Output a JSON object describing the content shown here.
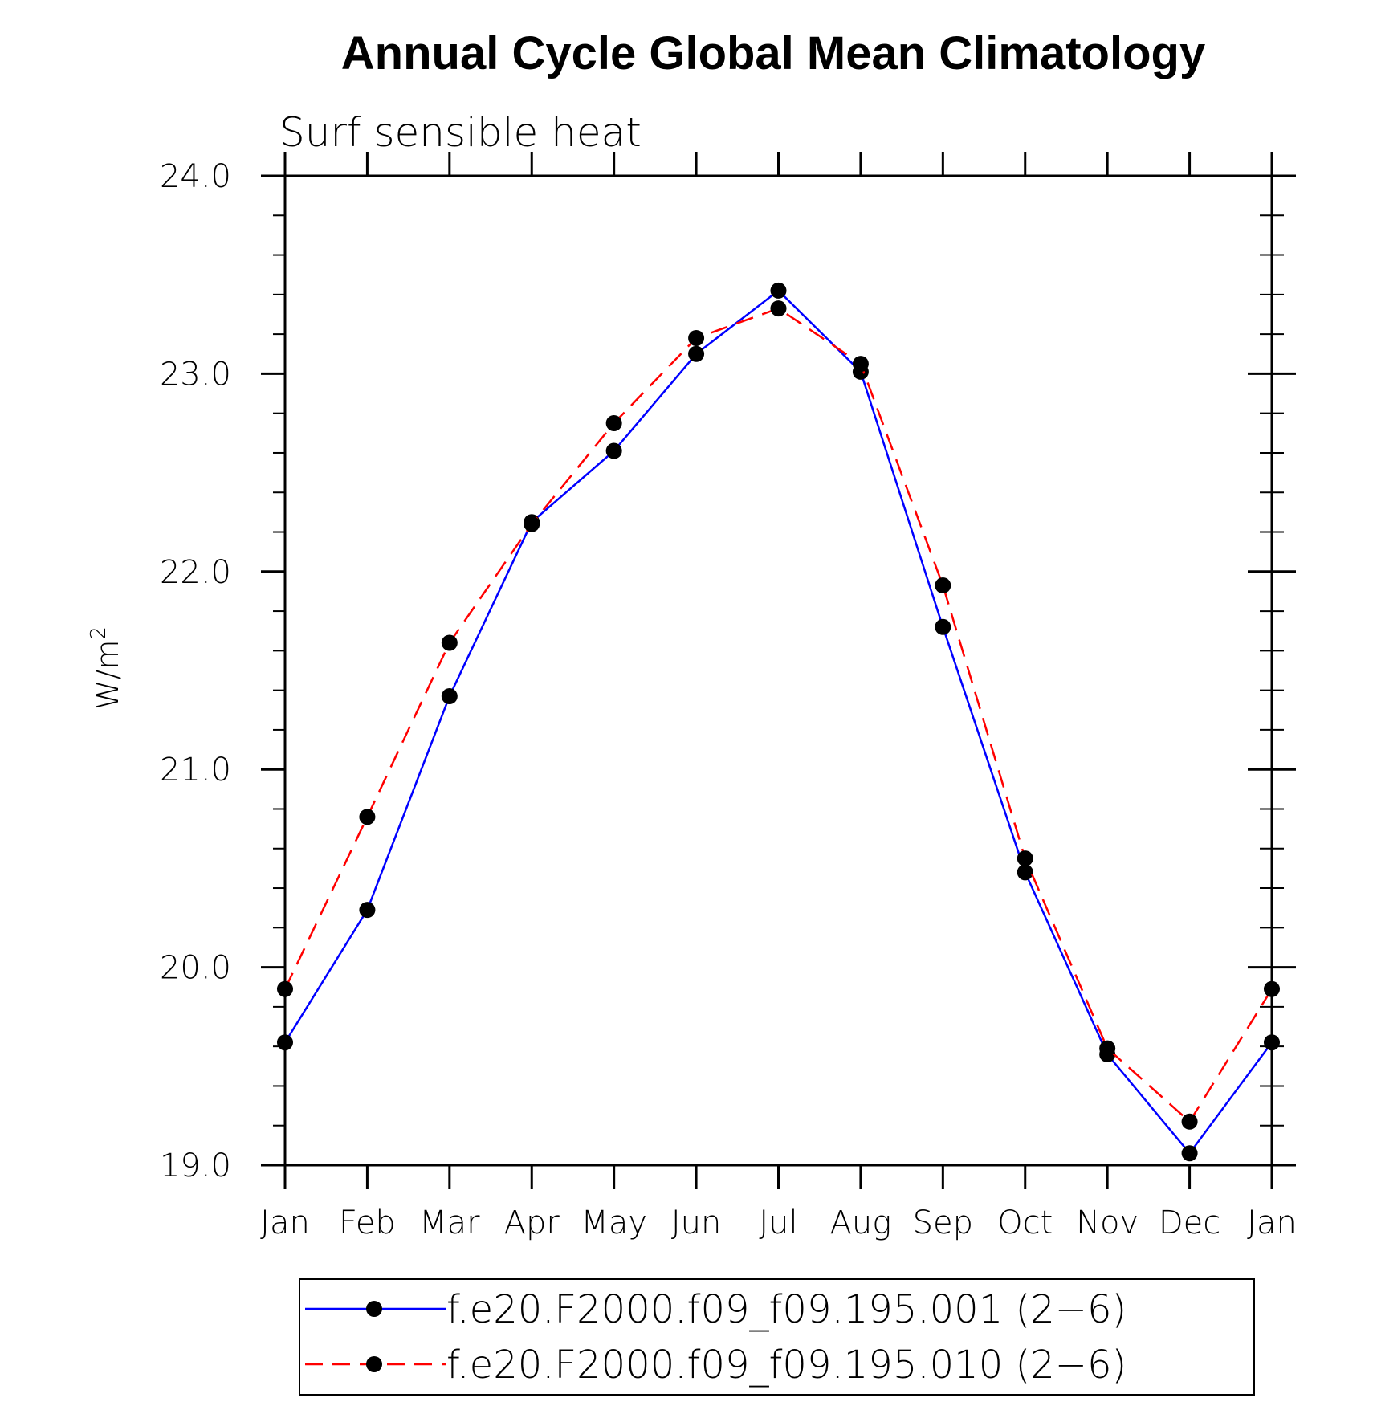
{
  "chart_data": {
    "type": "line",
    "title": "Annual Cycle Global Mean Climatology",
    "subtitle": "Surf sensible heat",
    "ylabel": "W/m",
    "ylabel_superscript": "2",
    "ylim": [
      19.0,
      24.0
    ],
    "yticks": [
      "24.0",
      "23.0",
      "22.0",
      "21.0",
      "20.0",
      "19.0"
    ],
    "categories": [
      "Jan",
      "Feb",
      "Mar",
      "Apr",
      "May",
      "Jun",
      "Jul",
      "Aug",
      "Sep",
      "Oct",
      "Nov",
      "Dec",
      "Jan"
    ],
    "grid": false,
    "legend_position": "bottom",
    "series": [
      {
        "name": "f.e20.F2000.f09_f09.195.001 (2−6)",
        "color": "#0000ff",
        "line_style": "solid",
        "values": [
          19.62,
          20.29,
          21.37,
          22.25,
          22.61,
          23.1,
          23.42,
          23.01,
          21.72,
          20.48,
          19.56,
          19.06,
          19.62
        ]
      },
      {
        "name": "f.e20.F2000.f09_f09.195.010 (2−6)",
        "color": "#ff0000",
        "line_style": "dashed",
        "values": [
          19.89,
          20.76,
          21.64,
          22.24,
          22.75,
          23.18,
          23.33,
          23.05,
          21.93,
          20.55,
          19.59,
          19.22,
          19.89
        ]
      }
    ]
  }
}
